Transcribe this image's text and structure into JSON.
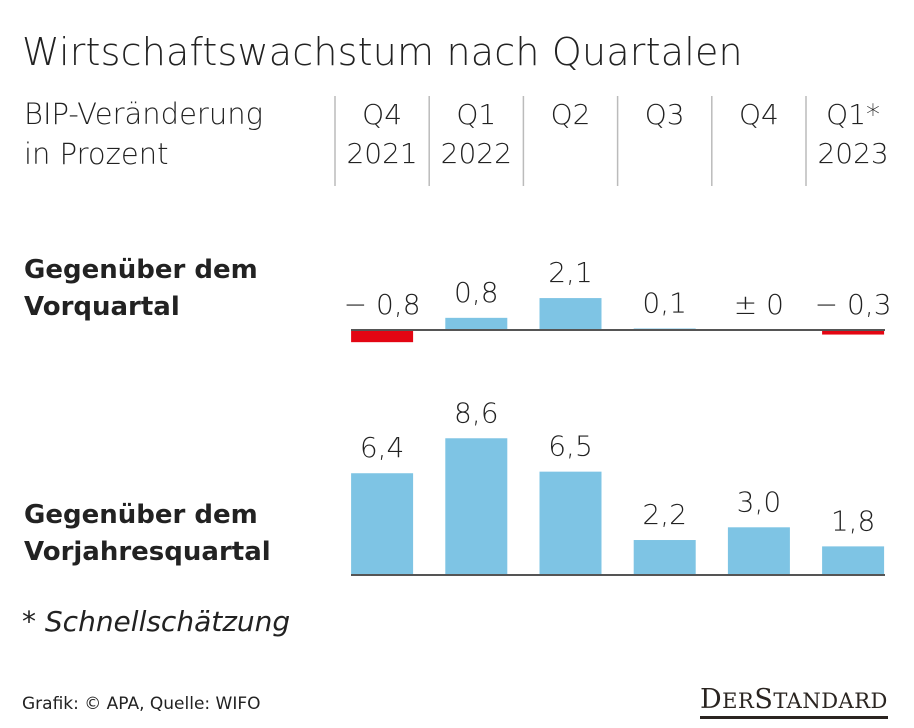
{
  "chart_data": [
    {
      "type": "bar",
      "title": "Wirtschaftswachstum nach Quartalen",
      "subtitle": [
        "BIP-Veränderung",
        "in Prozent"
      ],
      "categories": [
        [
          "Q4",
          "2021"
        ],
        [
          "Q1",
          "2022"
        ],
        [
          "Q2",
          ""
        ],
        [
          "Q3",
          ""
        ],
        [
          "Q4",
          ""
        ],
        [
          "Q1*",
          "2023"
        ]
      ],
      "row_label": [
        "Gegenüber dem",
        "Vorquartal"
      ],
      "values": [
        -0.8,
        0.8,
        2.1,
        0.1,
        0,
        -0.3
      ],
      "data_labels": [
        "− 0,8",
        "0,8",
        "2,1",
        "0,1",
        "± 0",
        "− 0,3"
      ],
      "colors": {
        "positive": "#7ec4e4",
        "negative": "#e30613"
      }
    },
    {
      "type": "bar",
      "categories": [
        [
          "Q4",
          "2021"
        ],
        [
          "Q1",
          "2022"
        ],
        [
          "Q2",
          ""
        ],
        [
          "Q3",
          ""
        ],
        [
          "Q4",
          ""
        ],
        [
          "Q1*",
          "2023"
        ]
      ],
      "row_label": [
        "Gegenüber dem",
        "Vorjahresquartal"
      ],
      "values": [
        6.4,
        8.6,
        6.5,
        2.2,
        3.0,
        1.8
      ],
      "data_labels": [
        "6,4",
        "8,6",
        "6,5",
        "2,2",
        "3,0",
        "1,8"
      ],
      "colors": {
        "positive": "#7ec4e4"
      }
    }
  ],
  "footnote": "* Schnellschätzung",
  "source": "Grafik: © APA, Quelle: WIFO",
  "logo": "DERSTANDARD"
}
